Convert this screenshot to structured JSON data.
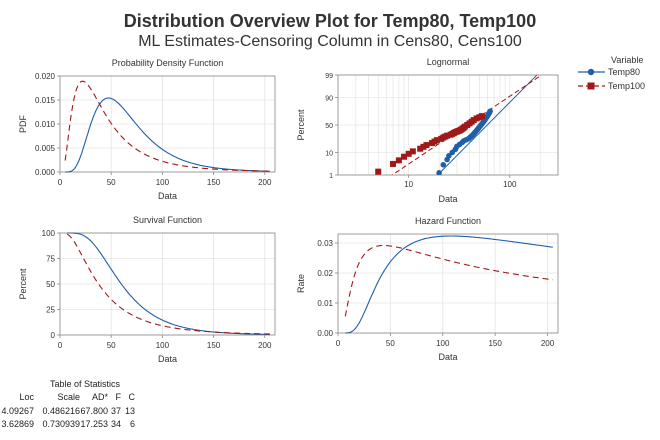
{
  "title": "Distribution Overview Plot for Temp80, Temp100",
  "subtitle": "ML Estimates-Censoring Column in Cens80, Cens100",
  "colors": {
    "temp80": "#1f5fa8",
    "temp100": "#a01818",
    "grid": "#e4e4e4",
    "axis": "#888888"
  },
  "legend": {
    "title": "Variable",
    "items": [
      {
        "name": "Temp80",
        "marker": "circle",
        "line": "solid",
        "color": "#1f5fa8"
      },
      {
        "name": "Temp100",
        "marker": "square",
        "line": "dashed",
        "color": "#a01818"
      }
    ]
  },
  "stats_table": {
    "caption": "Table of Statistics",
    "headers": [
      "Loc",
      "Scale",
      "AD*",
      "F",
      "C"
    ],
    "rows": [
      [
        "4.09267",
        "0.486216",
        "67.800",
        "37",
        "13"
      ],
      [
        "3.62869",
        "0.730939",
        "17.253",
        "34",
        "6"
      ]
    ]
  },
  "chart_data": [
    {
      "type": "line",
      "title": "Probability Density Function",
      "xlabel": "Data",
      "ylabel": "PDF",
      "xlim": [
        0,
        210
      ],
      "ylim": [
        0,
        0.02
      ],
      "xticks": [
        0,
        50,
        100,
        150,
        200
      ],
      "yticks": [
        0,
        0.005,
        0.01,
        0.015,
        0.02
      ],
      "ytick_labels": [
        "0.000",
        "0.005",
        "0.010",
        "0.015",
        "0.020"
      ],
      "grid": true,
      "series": [
        {
          "name": "Temp80",
          "dist": "lognormal",
          "loc": 4.09267,
          "scale": 0.486216,
          "x_range": [
            5,
            205
          ]
        },
        {
          "name": "Temp100",
          "dist": "lognormal",
          "loc": 3.62869,
          "scale": 0.730939,
          "x_range": [
            5,
            205
          ]
        }
      ]
    },
    {
      "type": "scatter",
      "title": "Lognormal",
      "xlabel": "Data",
      "ylabel": "Percent",
      "xscale": "log",
      "yscale": "normal-probability",
      "xlim": [
        2,
        300
      ],
      "ylim": [
        1,
        99
      ],
      "xticks": [
        10,
        100
      ],
      "yticks": [
        1,
        10,
        50,
        90,
        99
      ],
      "grid": true,
      "fit_lines": [
        {
          "name": "Temp80",
          "loc": 4.09267,
          "scale": 0.486216
        },
        {
          "name": "Temp100",
          "loc": 3.62869,
          "scale": 0.730939
        }
      ],
      "series": [
        {
          "name": "Temp80",
          "points": [
            [
              20,
              1.3
            ],
            [
              22,
              3.2
            ],
            [
              24,
              5.4
            ],
            [
              25,
              7.6
            ],
            [
              27,
              10.1
            ],
            [
              29,
              13
            ],
            [
              30,
              16
            ],
            [
              32,
              18.5
            ],
            [
              34,
              21
            ],
            [
              35,
              23
            ],
            [
              37,
              24.5
            ],
            [
              39,
              26
            ],
            [
              40,
              27.5
            ],
            [
              41,
              29
            ],
            [
              42,
              30.5
            ],
            [
              43,
              32
            ],
            [
              44,
              34
            ],
            [
              45,
              36
            ],
            [
              46,
              38
            ],
            [
              47,
              40
            ],
            [
              48,
              42
            ],
            [
              49,
              44
            ],
            [
              50,
              46
            ],
            [
              51,
              48
            ],
            [
              52,
              50
            ],
            [
              53,
              52
            ],
            [
              54,
              54
            ],
            [
              55,
              56
            ],
            [
              56,
              58
            ],
            [
              57,
              60
            ],
            [
              58,
              62
            ],
            [
              59,
              64
            ],
            [
              60,
              66
            ],
            [
              61,
              68
            ],
            [
              62,
              70
            ],
            [
              63,
              72
            ],
            [
              64,
              74
            ]
          ]
        },
        {
          "name": "Temp100",
          "points": [
            [
              5,
              1.5
            ],
            [
              7,
              3.5
            ],
            [
              8,
              5
            ],
            [
              9,
              7
            ],
            [
              10,
              9
            ],
            [
              11,
              11
            ],
            [
              13,
              13.5
            ],
            [
              14,
              15.5
            ],
            [
              15,
              17.5
            ],
            [
              17,
              20
            ],
            [
              18,
              22
            ],
            [
              19,
              24
            ],
            [
              21,
              26
            ],
            [
              22,
              28
            ],
            [
              23,
              29.5
            ],
            [
              24,
              31
            ],
            [
              26,
              32.5
            ],
            [
              27,
              34
            ],
            [
              28,
              35.5
            ],
            [
              29,
              37
            ],
            [
              30,
              38
            ],
            [
              31,
              39
            ],
            [
              32,
              40
            ],
            [
              33,
              41.5
            ],
            [
              34,
              43
            ],
            [
              35,
              45
            ],
            [
              36,
              47
            ],
            [
              38,
              50
            ],
            [
              40,
              53
            ],
            [
              42,
              56
            ],
            [
              44,
              59
            ],
            [
              47,
              62
            ],
            [
              50,
              64
            ],
            [
              53,
              66
            ]
          ]
        }
      ]
    },
    {
      "type": "line",
      "title": "Survival Function",
      "xlabel": "Data",
      "ylabel": "Percent",
      "xlim": [
        0,
        210
      ],
      "ylim": [
        0,
        100
      ],
      "xticks": [
        0,
        50,
        100,
        150,
        200
      ],
      "yticks": [
        0,
        25,
        50,
        75,
        100
      ],
      "grid": true,
      "series": [
        {
          "name": "Temp80",
          "dist": "lognormal",
          "loc": 4.09267,
          "scale": 0.486216,
          "x_range": [
            7,
            205
          ]
        },
        {
          "name": "Temp100",
          "dist": "lognormal",
          "loc": 3.62869,
          "scale": 0.730939,
          "x_range": [
            7,
            205
          ]
        }
      ]
    },
    {
      "type": "line",
      "title": "Hazard Function",
      "xlabel": "Data",
      "ylabel": "Rate",
      "xlim": [
        0,
        210
      ],
      "ylim": [
        0,
        0.033
      ],
      "xticks": [
        0,
        50,
        100,
        150,
        200
      ],
      "yticks": [
        0,
        0.01,
        0.02,
        0.03
      ],
      "ytick_labels": [
        "0.00",
        "0.01",
        "0.02",
        "0.03"
      ],
      "grid": true,
      "series": [
        {
          "name": "Temp80",
          "dist": "lognormal",
          "loc": 4.09267,
          "scale": 0.486216,
          "x_range": [
            7,
            205
          ]
        },
        {
          "name": "Temp100",
          "dist": "lognormal",
          "loc": 3.62869,
          "scale": 0.730939,
          "x_range": [
            7,
            205
          ]
        }
      ]
    }
  ]
}
